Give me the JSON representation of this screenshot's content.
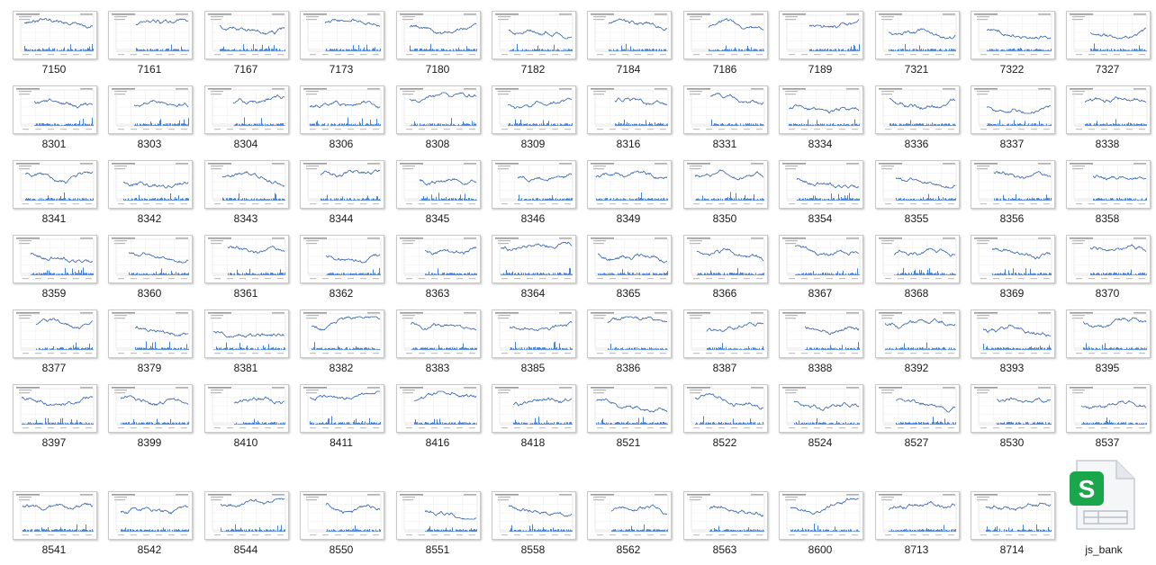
{
  "files": [
    [
      "7150",
      "7161",
      "7167",
      "7173",
      "7180",
      "7182",
      "7184",
      "7186",
      "7189",
      "7321",
      "7322",
      "7327"
    ],
    [
      "8301",
      "8303",
      "8304",
      "8306",
      "8308",
      "8309",
      "8316",
      "8331",
      "8334",
      "8336",
      "8337",
      "8338"
    ],
    [
      "8341",
      "8342",
      "8343",
      "8344",
      "8345",
      "8346",
      "8349",
      "8350",
      "8354",
      "8355",
      "8356",
      "8358"
    ],
    [
      "8359",
      "8360",
      "8361",
      "8362",
      "8363",
      "8364",
      "8365",
      "8366",
      "8367",
      "8368",
      "8369",
      "8370"
    ],
    [
      "8377",
      "8379",
      "8381",
      "8382",
      "8383",
      "8385",
      "8386",
      "8387",
      "8388",
      "8392",
      "8393",
      "8395"
    ],
    [
      "8397",
      "8399",
      "8410",
      "8411",
      "8416",
      "8418",
      "8521",
      "8522",
      "8524",
      "8527",
      "8530",
      "8537"
    ],
    [
      "8541",
      "8542",
      "8544",
      "8550",
      "8551",
      "8558",
      "8562",
      "8563",
      "8600",
      "8713",
      "8714"
    ]
  ],
  "spreadsheet_file": {
    "name": "js_bank",
    "icon": "spreadsheet-icon",
    "icon_letter": "S",
    "accent": "#1aa64a"
  },
  "colors": {
    "price_line": "#2e5fa8",
    "volume": "#1565d8",
    "thumb_border": "#c9c9c9"
  }
}
